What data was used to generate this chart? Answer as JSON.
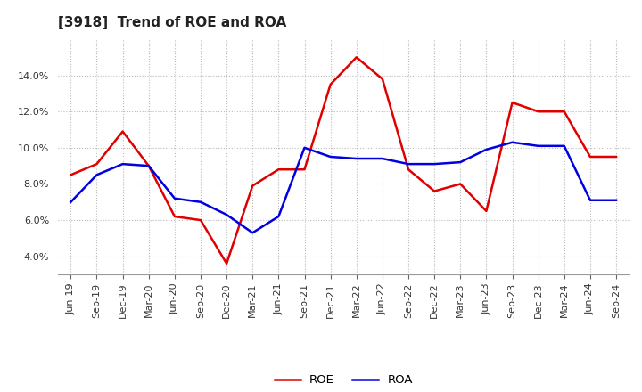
{
  "title": "[3918]  Trend of ROE and ROA",
  "x_labels": [
    "Jun-19",
    "Sep-19",
    "Dec-19",
    "Mar-20",
    "Jun-20",
    "Sep-20",
    "Dec-20",
    "Mar-21",
    "Jun-21",
    "Sep-21",
    "Dec-21",
    "Mar-22",
    "Jun-22",
    "Sep-22",
    "Dec-22",
    "Mar-23",
    "Jun-23",
    "Sep-23",
    "Dec-23",
    "Mar-24",
    "Jun-24",
    "Sep-24"
  ],
  "roe": [
    8.5,
    9.1,
    10.9,
    9.0,
    6.2,
    6.0,
    3.6,
    7.9,
    8.8,
    8.8,
    13.5,
    15.0,
    13.8,
    8.8,
    7.6,
    8.0,
    6.5,
    12.5,
    12.0,
    12.0,
    9.5,
    9.5
  ],
  "roa": [
    7.0,
    8.5,
    9.1,
    9.0,
    7.2,
    7.0,
    6.3,
    5.3,
    6.2,
    10.0,
    9.5,
    9.4,
    9.4,
    9.1,
    9.1,
    9.2,
    9.9,
    10.3,
    10.1,
    10.1,
    7.1,
    7.1
  ],
  "roe_color": "#e00000",
  "roa_color": "#0000e0",
  "ylim_min": 3.0,
  "ylim_max": 16.0,
  "yticks": [
    4.0,
    6.0,
    8.0,
    10.0,
    12.0,
    14.0
  ],
  "background_color": "#ffffff",
  "plot_bg_color": "#ffffff",
  "grid_color": "#bbbbbb",
  "legend_roe": "ROE",
  "legend_roa": "ROA",
  "line_width": 1.8,
  "title_fontsize": 11,
  "tick_fontsize": 8,
  "ytick_fontsize": 8
}
